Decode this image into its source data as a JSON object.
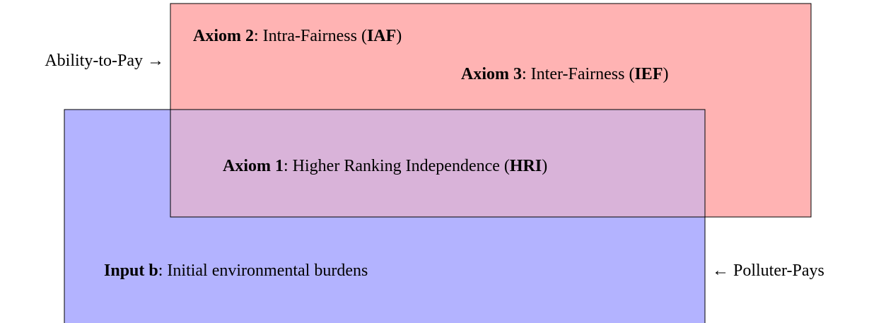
{
  "ability_label": "Ability-to-Pay →",
  "polluter_label": "← Polluter-Pays",
  "axioms": [
    {
      "name": "Axiom 2",
      "text": ": Intra-Fairness (",
      "abbr": "IAF",
      "end": ")"
    },
    {
      "name": "Axiom 3",
      "text": ": Inter-Fairness (",
      "abbr": "IEF",
      "end": ")"
    },
    {
      "name": "Axiom 1",
      "text": ": Higher Ranking Independence (",
      "abbr": "HRI",
      "end": ")"
    }
  ],
  "input": {
    "name": "Input b",
    "text": ": Initial environmental burdens"
  }
}
